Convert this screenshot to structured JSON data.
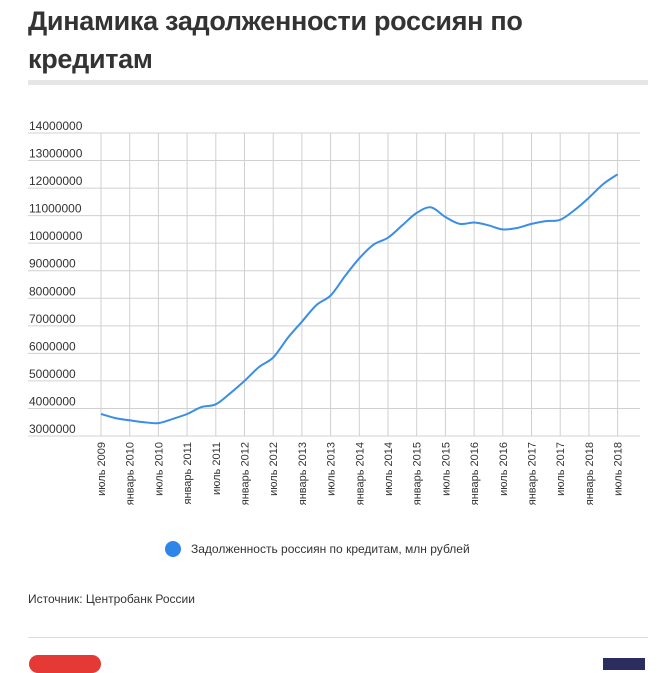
{
  "page": {
    "title": "Динамика задолженности россиян по кредитам",
    "source": "Источник: Центробанк России"
  },
  "colors": {
    "series": "#3a8ee6",
    "legend_dot": "#2f86e8",
    "grid": "#d0d0d0",
    "text": "#333333"
  },
  "chart_data": {
    "type": "line",
    "title": "Динамика задолженности россиян по кредитам",
    "xlabel": "",
    "ylabel": "",
    "ylim": [
      3000000,
      14000000
    ],
    "yticks": [
      3000000,
      4000000,
      5000000,
      6000000,
      7000000,
      8000000,
      9000000,
      10000000,
      11000000,
      12000000,
      13000000,
      14000000
    ],
    "x_tick_labels": [
      "июль 2009",
      "январь 2010",
      "июль 2010",
      "январь 2011",
      "июль 2011",
      "январь 2012",
      "июль 2012",
      "январь 2013",
      "июль 2013",
      "январь 2014",
      "июль 2014",
      "январь 2015",
      "июль 2015",
      "январь 2016",
      "июль 2016",
      "январь 2017",
      "июль 2017",
      "январь 2018",
      "июль 2018"
    ],
    "grid": true,
    "legend_position": "bottom",
    "series": [
      {
        "name": "Задолженность россиян по кредитам, млн рублей",
        "x": [
          0,
          0.5,
          1,
          1.5,
          2,
          2.5,
          3,
          3.5,
          4,
          4.5,
          5,
          5.5,
          6,
          6.5,
          7,
          7.5,
          8,
          8.5,
          9,
          9.5,
          10,
          10.5,
          11,
          11.5,
          12,
          12.5,
          13,
          13.5,
          14,
          14.5,
          15,
          15.5,
          16,
          16.5,
          17,
          17.5,
          18
        ],
        "values": [
          3800000,
          3650000,
          3570000,
          3500000,
          3470000,
          3620000,
          3800000,
          4050000,
          4150000,
          4550000,
          5000000,
          5500000,
          5850000,
          6550000,
          7150000,
          7750000,
          8100000,
          8800000,
          9450000,
          9950000,
          10200000,
          10650000,
          11100000,
          11300000,
          10950000,
          10700000,
          10750000,
          10650000,
          10500000,
          10550000,
          10700000,
          10800000,
          10850000,
          11200000,
          11650000,
          12150000,
          12500000
        ]
      }
    ]
  }
}
